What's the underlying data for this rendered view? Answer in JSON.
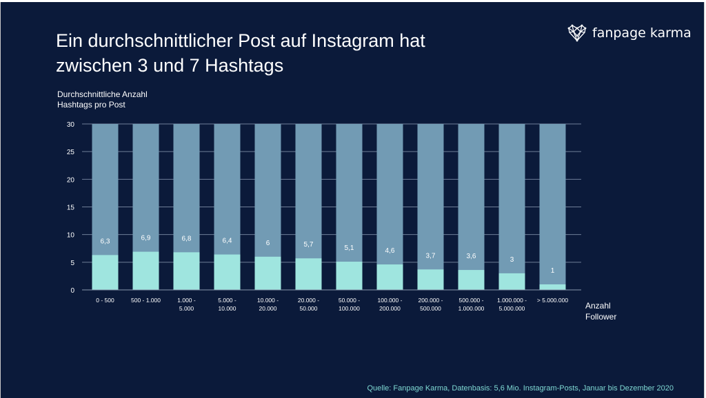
{
  "header": {
    "title_lines": [
      "Ein durchschnittlicher Post auf Instagram hat",
      "zwischen 3 und 7 Hashtags"
    ],
    "brand_name": "fanpage karma",
    "brand_icon": "heart-network-icon"
  },
  "footer": {
    "source": "Quelle: Fanpage Karma, Datenbasis: 5,6 Mio. Instagram-Posts, Januar bis Dezember 2020"
  },
  "colors": {
    "background": "#0b1a3a",
    "bar_full": "#729bb4",
    "bar_value": "#9fe5df",
    "text": "#ffffff",
    "source": "#7fd9d3"
  },
  "chart_data": {
    "type": "bar",
    "ylabel_lines": [
      "Durchschnittliche Anzahl",
      "Hashtags pro Post"
    ],
    "xlabel_lines": [
      "Anzahl",
      "Follower"
    ],
    "ylim": [
      0,
      30
    ],
    "yticks": [
      0,
      5,
      10,
      15,
      20,
      25,
      30
    ],
    "grid": true,
    "categories": [
      [
        "0 - 500"
      ],
      [
        "500 - 1.000"
      ],
      [
        "1.000 -",
        "5.000"
      ],
      [
        "5.000 -",
        "10.000"
      ],
      [
        "10.000 -",
        "20.000"
      ],
      [
        "20.000 -",
        "50.000"
      ],
      [
        "50.000 -",
        "100.000"
      ],
      [
        "100.000 -",
        "200.000"
      ],
      [
        "200.000 -",
        "500.000"
      ],
      [
        "500.000 -",
        "1.000.000"
      ],
      [
        "1.000.000 -",
        "5.000.000"
      ],
      [
        "> 5.000.000"
      ]
    ],
    "values": [
      6.3,
      6.9,
      6.8,
      6.4,
      6,
      5.7,
      5.1,
      4.6,
      3.7,
      3.6,
      3,
      1
    ],
    "value_labels": [
      "6,3",
      "6,9",
      "6,8",
      "6,4",
      "6",
      "5,7",
      "5,1",
      "4,6",
      "3,7",
      "3,6",
      "3",
      "1"
    ],
    "background_bar_value": 30
  }
}
